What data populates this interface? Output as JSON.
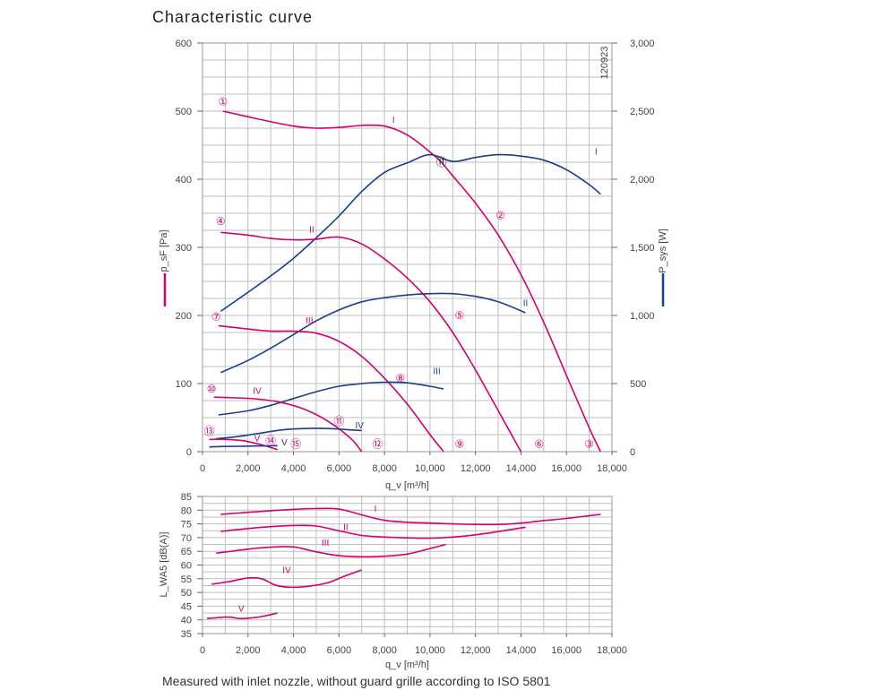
{
  "title": "Characteristic curve",
  "footnote": "Measured with inlet nozzle, without guard grille according to ISO 5801",
  "doc_id": "120923",
  "colors": {
    "pressure": "#d4006f",
    "power": "#1a3d8f",
    "grid": "#bfbfbf",
    "axis": "#666666"
  },
  "chart_data": [
    {
      "type": "line",
      "xlabel": "q_v [m³/h]",
      "ylabel_left": "p_sF [Pa]",
      "ylabel_right": "P_sys [W]",
      "xlim": [
        0,
        18000
      ],
      "ylim_left": [
        0,
        600
      ],
      "ylim_right": [
        0,
        3000
      ],
      "x_ticks": [
        "0",
        "2,000",
        "4,000",
        "6,000",
        "8,000",
        "10,000",
        "12,000",
        "14,000",
        "16,000",
        "18,000"
      ],
      "y_ticks_left": [
        "0",
        "100",
        "200",
        "300",
        "400",
        "500",
        "600"
      ],
      "y_ticks_right": [
        "0",
        "500",
        "1,000",
        "1,500",
        "2,000",
        "2,500",
        "3,000"
      ],
      "grid": true,
      "series": [
        {
          "name": "I",
          "kind": "pressure",
          "axis": "left",
          "x": [
            900,
            2500,
            4000,
            5000,
            6000,
            7000,
            8000,
            9000,
            10000,
            10500,
            11000,
            12000,
            13000,
            14000,
            15000,
            16000,
            17000,
            17500
          ],
          "y": [
            500,
            488,
            478,
            475,
            476,
            479,
            478,
            465,
            440,
            425,
            405,
            365,
            318,
            260,
            190,
            112,
            35,
            0
          ]
        },
        {
          "name": "I",
          "kind": "power",
          "axis": "right",
          "x": [
            800,
            2000,
            3000,
            4000,
            5000,
            6000,
            7000,
            8000,
            9000,
            10000,
            11000,
            12000,
            13000,
            14000,
            15000,
            16000,
            17000,
            17500
          ],
          "y": [
            1030,
            1170,
            1290,
            1420,
            1570,
            1730,
            1910,
            2050,
            2120,
            2180,
            2130,
            2160,
            2180,
            2170,
            2140,
            2070,
            1960,
            1890
          ]
        },
        {
          "name": "II",
          "kind": "pressure",
          "axis": "left",
          "x": [
            800,
            2000,
            3000,
            4000,
            5000,
            6000,
            7000,
            8000,
            9000,
            10000,
            11000,
            12000,
            13000,
            13500,
            14000
          ],
          "y": [
            322,
            318,
            313,
            311,
            312,
            315,
            305,
            283,
            255,
            220,
            175,
            120,
            60,
            30,
            0
          ]
        },
        {
          "name": "II",
          "kind": "power",
          "axis": "right",
          "x": [
            800,
            2000,
            3000,
            4000,
            5000,
            6000,
            7000,
            8000,
            9000,
            10000,
            11000,
            12000,
            13000,
            14200
          ],
          "y": [
            580,
            670,
            760,
            860,
            960,
            1040,
            1100,
            1130,
            1150,
            1160,
            1160,
            1140,
            1100,
            1020
          ]
        },
        {
          "name": "III",
          "kind": "pressure",
          "axis": "left",
          "x": [
            700,
            2000,
            3000,
            4000,
            5000,
            6000,
            7000,
            8000,
            9000,
            10000,
            10600
          ],
          "y": [
            185,
            180,
            177,
            177,
            174,
            162,
            140,
            108,
            70,
            25,
            0
          ]
        },
        {
          "name": "III",
          "kind": "power",
          "axis": "right",
          "x": [
            700,
            2000,
            3000,
            4000,
            5000,
            6000,
            7000,
            8000,
            9000,
            10000,
            10600
          ],
          "y": [
            270,
            300,
            340,
            390,
            440,
            480,
            500,
            510,
            505,
            480,
            460
          ]
        },
        {
          "name": "IV",
          "kind": "pressure",
          "axis": "left",
          "x": [
            500,
            1500,
            2500,
            3500,
            4500,
            5500,
            6500,
            7000
          ],
          "y": [
            80,
            79,
            77,
            72,
            62,
            45,
            20,
            0
          ]
        },
        {
          "name": "IV",
          "kind": "power",
          "axis": "right",
          "x": [
            600,
            1500,
            2500,
            3500,
            4500,
            5500,
            6500,
            7000
          ],
          "y": [
            95,
            110,
            135,
            160,
            170,
            170,
            160,
            155
          ]
        },
        {
          "name": "V",
          "kind": "pressure",
          "axis": "left",
          "x": [
            300,
            1000,
            1800,
            2600,
            3300
          ],
          "y": [
            18,
            18,
            16,
            10,
            3
          ]
        },
        {
          "name": "V",
          "kind": "power",
          "axis": "right",
          "x": [
            300,
            1000,
            1800,
            2600,
            3300
          ],
          "y": [
            35,
            38,
            40,
            42,
            44
          ]
        }
      ],
      "annotations": [
        {
          "label": "①",
          "x": 900,
          "y": 514
        },
        {
          "label": "②",
          "x": 13100,
          "y": 347
        },
        {
          "label": "③",
          "x": 17000,
          "y": 11
        },
        {
          "label": "④",
          "x": 800,
          "y": 338
        },
        {
          "label": "⑤",
          "x": 11300,
          "y": 200
        },
        {
          "label": "⑥",
          "x": 14800,
          "y": 11
        },
        {
          "label": "⑦",
          "x": 600,
          "y": 198
        },
        {
          "label": "⑧",
          "x": 8700,
          "y": 108
        },
        {
          "label": "⑨",
          "x": 11300,
          "y": 11
        },
        {
          "label": "⑩",
          "x": 400,
          "y": 92
        },
        {
          "label": "⑪",
          "x": 6000,
          "y": 45
        },
        {
          "label": "⑫",
          "x": 7700,
          "y": 11
        },
        {
          "label": "⑬",
          "x": 300,
          "y": 30
        },
        {
          "label": "⑭",
          "x": 3000,
          "y": 16
        },
        {
          "label": "⑮",
          "x": 4100,
          "y": 11
        },
        {
          "label": "⑪",
          "x": 10500,
          "y": 425,
          "black": true
        }
      ],
      "series_labels": [
        {
          "text": "I",
          "x": 8400,
          "y": 483,
          "kind": "pressure"
        },
        {
          "text": "I",
          "x": 17300,
          "y": 2180,
          "axis": "right",
          "kind": "power"
        },
        {
          "text": "II",
          "x": 4800,
          "y": 322,
          "kind": "pressure"
        },
        {
          "text": "II",
          "x": 14200,
          "y": 1070,
          "axis": "right",
          "kind": "power"
        },
        {
          "text": "III",
          "x": 4700,
          "y": 188,
          "kind": "pressure"
        },
        {
          "text": "III",
          "x": 10300,
          "y": 570,
          "axis": "right",
          "kind": "power"
        },
        {
          "text": "IV",
          "x": 2400,
          "y": 85,
          "kind": "pressure"
        },
        {
          "text": "IV",
          "x": 6900,
          "y": 170,
          "axis": "right",
          "kind": "power"
        },
        {
          "text": "V",
          "x": 2400,
          "y": 15,
          "kind": "pressure"
        },
        {
          "text": "V",
          "x": 3600,
          "y": 45,
          "axis": "right",
          "kind": "power"
        }
      ]
    },
    {
      "type": "line",
      "xlabel": "q_v [m³/h]",
      "ylabel": "L_WA5 [dB(A)]",
      "xlim": [
        0,
        18000
      ],
      "ylim": [
        35,
        85
      ],
      "x_ticks": [
        "0",
        "2,000",
        "4,000",
        "6,000",
        "8,000",
        "10,000",
        "12,000",
        "14,000",
        "16,000",
        "18,000"
      ],
      "y_ticks": [
        "35",
        "40",
        "45",
        "50",
        "55",
        "60",
        "65",
        "70",
        "75",
        "80",
        "85"
      ],
      "grid": true,
      "series": [
        {
          "name": "I",
          "x": [
            800,
            2000,
            3000,
            4000,
            5000,
            6000,
            7000,
            8000,
            9000,
            10000,
            11000,
            12000,
            13000,
            14000,
            15000,
            16000,
            17500
          ],
          "y": [
            78.5,
            79.2,
            79.8,
            80.3,
            80.6,
            80.4,
            78.3,
            76.3,
            75.6,
            75.3,
            75,
            74.8,
            74.8,
            75.3,
            76.2,
            77,
            78.5
          ]
        },
        {
          "name": "II",
          "x": [
            800,
            2000,
            3000,
            4000,
            5000,
            6000,
            7000,
            8000,
            9000,
            10000,
            11000,
            12000,
            13000,
            14200
          ],
          "y": [
            72.3,
            73.3,
            74,
            74.4,
            74.2,
            72.5,
            70.8,
            70.2,
            69.9,
            69.8,
            70.2,
            71,
            72.2,
            73.8
          ]
        },
        {
          "name": "III",
          "x": [
            600,
            2000,
            3000,
            4000,
            5000,
            6000,
            7000,
            8000,
            9000,
            10000,
            10700
          ],
          "y": [
            64.3,
            65.8,
            66.5,
            66.6,
            64.8,
            63.4,
            63,
            63.2,
            64,
            66,
            67.5
          ]
        },
        {
          "name": "IV",
          "x": [
            400,
            1200,
            2000,
            2600,
            3200,
            3800,
            4600,
            5500,
            6200,
            7000
          ],
          "y": [
            53,
            54,
            55.3,
            55,
            52.7,
            51.9,
            52.2,
            53.5,
            55.8,
            58.2
          ]
        },
        {
          "name": "V",
          "x": [
            200,
            800,
            1200,
            1600,
            2000,
            2600,
            3300
          ],
          "y": [
            40.5,
            40.9,
            41,
            40.5,
            40.6,
            41.2,
            42.5
          ]
        }
      ],
      "series_labels": [
        {
          "text": "I",
          "x": 7600,
          "y": 79.5
        },
        {
          "text": "II",
          "x": 6300,
          "y": 72.8
        },
        {
          "text": "III",
          "x": 5400,
          "y": 67
        },
        {
          "text": "IV",
          "x": 3700,
          "y": 57
        },
        {
          "text": "V",
          "x": 1700,
          "y": 43
        }
      ]
    }
  ]
}
